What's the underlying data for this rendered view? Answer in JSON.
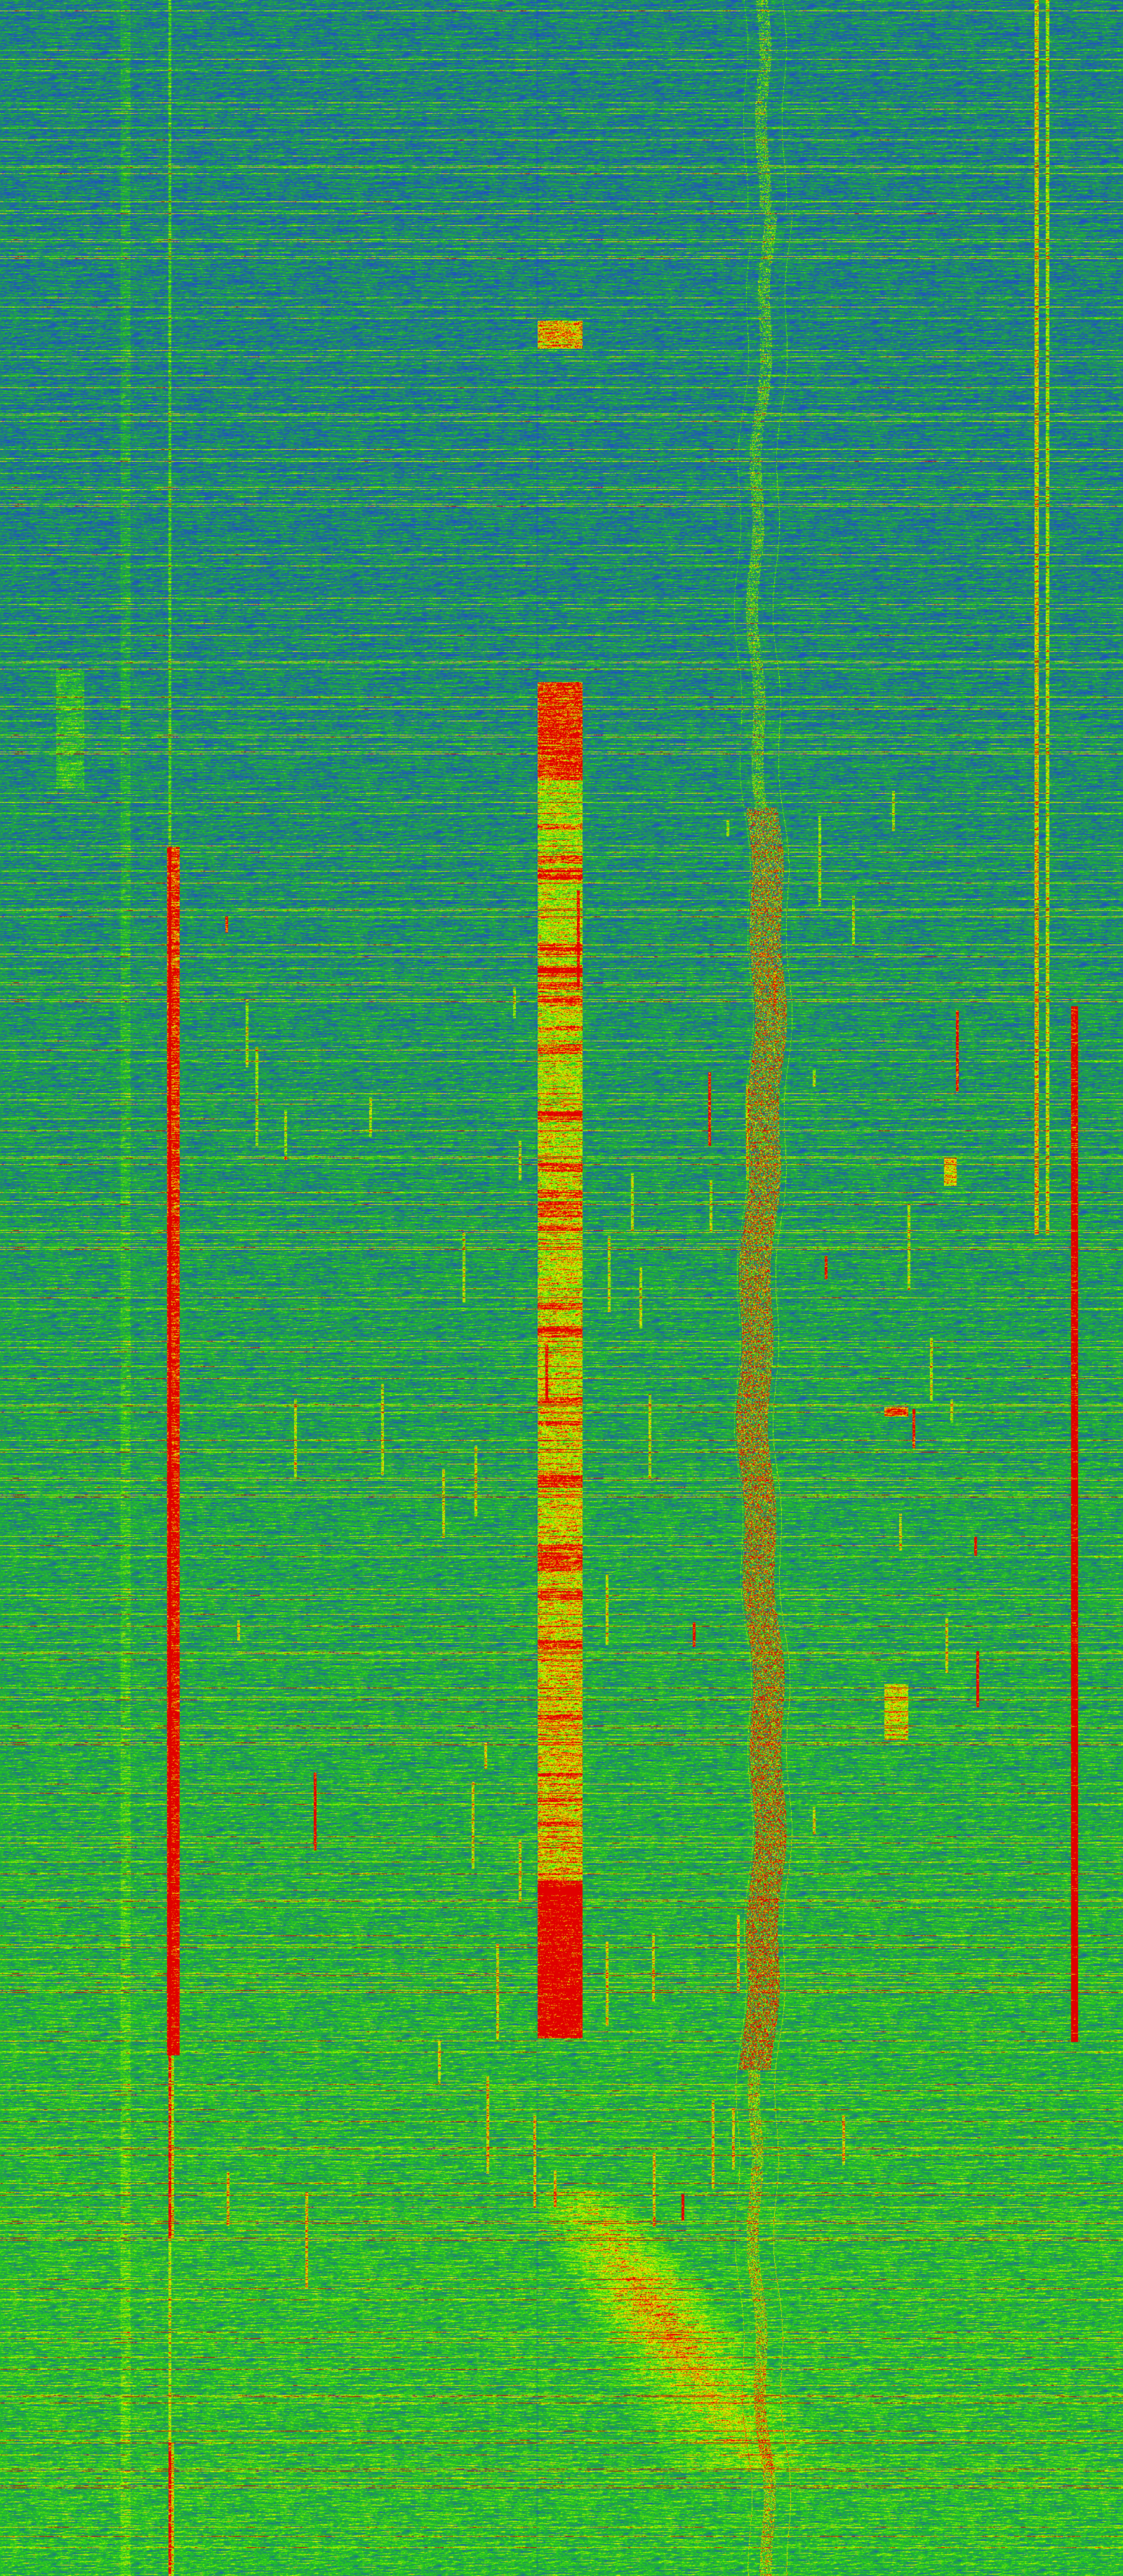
{
  "image": {
    "kind": "waterfall-spectrogram",
    "colormap": [
      "#1e4fc8",
      "#1fa04a",
      "#22c81e",
      "#7cf000",
      "#f0f000",
      "#f08000",
      "#e00000"
    ],
    "background_top_color": "#1f6a9a",
    "background_bottom_color": "#22b02a",
    "signal_colors": {
      "strong": "#e00000",
      "medium": "#f0a000",
      "weak": "#a8f000"
    }
  }
}
